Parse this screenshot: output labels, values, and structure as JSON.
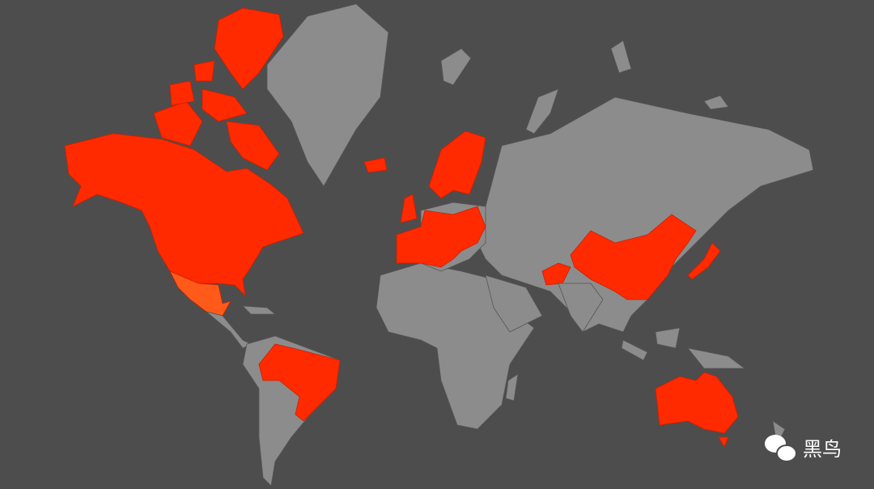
{
  "watermark": {
    "text": "黑鸟"
  }
}
